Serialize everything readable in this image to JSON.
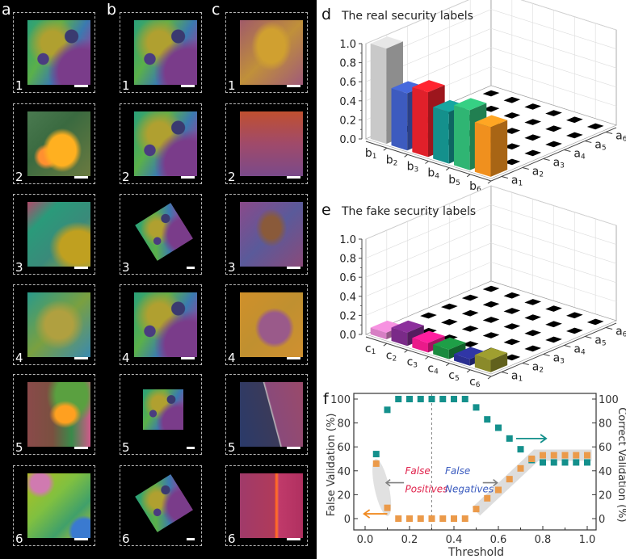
{
  "panels": {
    "left": {
      "columns": [
        {
          "letter": "a",
          "tiles": [
            {
              "num": "1",
              "style": "rainbow1"
            },
            {
              "num": "2",
              "style": "yellowburst"
            },
            {
              "num": "3",
              "style": "greenred"
            },
            {
              "num": "4",
              "style": "yellowgreen"
            },
            {
              "num": "5",
              "style": "greenorange"
            },
            {
              "num": "6",
              "style": "limeblue"
            }
          ]
        },
        {
          "letter": "b",
          "tiles": [
            {
              "num": "1",
              "style": "rainbow1"
            },
            {
              "num": "2",
              "style": "rainbow1"
            },
            {
              "num": "3",
              "style": "rainbow1",
              "transform": "rotated"
            },
            {
              "num": "4",
              "style": "rainbow1"
            },
            {
              "num": "5",
              "style": "rainbow1",
              "transform": "scaled"
            },
            {
              "num": "6",
              "style": "rainbow1",
              "transform": "rotated"
            }
          ]
        },
        {
          "letter": "c",
          "tiles": [
            {
              "num": "1",
              "style": "goldpurple"
            },
            {
              "num": "2",
              "style": "orangepurple"
            },
            {
              "num": "3",
              "style": "purplemix"
            },
            {
              "num": "4",
              "style": "goldpurple2"
            },
            {
              "num": "5",
              "style": "darkscratch"
            },
            {
              "num": "6",
              "style": "redscratch"
            }
          ]
        }
      ]
    }
  },
  "chart_data": [
    {
      "panel_letter": "d",
      "type": "bar",
      "subtype": "3d-bar",
      "title": "The real security labels",
      "zlim": [
        0,
        1.0
      ],
      "zticks": [
        "0.0",
        "0.2",
        "0.4",
        "0.6",
        "0.8",
        "1.0"
      ],
      "row_labels": [
        "b1",
        "b2",
        "b3",
        "b4",
        "b5",
        "b6"
      ],
      "row_label_base": [
        "b",
        "b",
        "b",
        "b",
        "b",
        "b"
      ],
      "row_label_sub": [
        "1",
        "2",
        "3",
        "4",
        "5",
        "6"
      ],
      "col_labels": [
        "a1",
        "a2",
        "a3",
        "a4",
        "a5",
        "a6"
      ],
      "col_label_base": [
        "a",
        "a",
        "a",
        "a",
        "a",
        "a"
      ],
      "col_label_sub": [
        "1",
        "2",
        "3",
        "4",
        "5",
        "6"
      ],
      "diagonal_values": [
        1.0,
        0.6,
        0.68,
        0.54,
        0.63,
        0.52
      ],
      "diagonal_note": "bars only at (bi, a1) front row; all other cells ~0 shown as black floor markers",
      "bar_colors": [
        "#c9c9c9",
        "#3d5bbf",
        "#e0202a",
        "#14908c",
        "#2fb573",
        "#f0901e"
      ],
      "grid": true
    },
    {
      "panel_letter": "e",
      "type": "bar",
      "subtype": "3d-bar",
      "title": "The fake security labels",
      "zlim": [
        0,
        1.0
      ],
      "zticks": [
        "0.0",
        "0.2",
        "0.4",
        "0.6",
        "0.8",
        "1.0"
      ],
      "row_labels": [
        "c1",
        "c2",
        "c3",
        "c4",
        "c5",
        "c6"
      ],
      "row_label_base": [
        "c",
        "c",
        "c",
        "c",
        "c",
        "c"
      ],
      "row_label_sub": [
        "1",
        "2",
        "3",
        "4",
        "5",
        "6"
      ],
      "col_labels": [
        "a1",
        "a2",
        "a3",
        "a4",
        "a5",
        "a6"
      ],
      "col_label_base": [
        "a",
        "a",
        "a",
        "a",
        "a",
        "a"
      ],
      "col_label_sub": [
        "1",
        "2",
        "3",
        "4",
        "5",
        "6"
      ],
      "diagonal_values": [
        0.07,
        0.14,
        0.1,
        0.1,
        0.07,
        0.13
      ],
      "bar_colors": [
        "#d77fc4",
        "#7a2a88",
        "#ea1a8a",
        "#1a8a3e",
        "#2a2f90",
        "#8a8a2a"
      ],
      "grid": true
    },
    {
      "panel_letter": "f",
      "type": "scatter",
      "title": "",
      "xlabel": "Threshold",
      "ylabel": "False Validation (%)",
      "ylabel_right": "Correct Validation (%)",
      "xlim": [
        -0.05,
        1.05
      ],
      "ylim": [
        -10,
        105
      ],
      "xticks": [
        "0.0",
        "0.2",
        "0.4",
        "0.6",
        "0.8",
        "1.0"
      ],
      "xtick_values": [
        0.0,
        0.2,
        0.4,
        0.6,
        0.8,
        1.0
      ],
      "yticks": [
        "0",
        "20",
        "40",
        "60",
        "80",
        "100"
      ],
      "ytick_values": [
        0,
        20,
        40,
        60,
        80,
        100
      ],
      "x": [
        0.05,
        0.1,
        0.15,
        0.2,
        0.25,
        0.3,
        0.35,
        0.4,
        0.45,
        0.5,
        0.55,
        0.6,
        0.65,
        0.7,
        0.75,
        0.8,
        0.85,
        0.9,
        0.95,
        1.0
      ],
      "series": [
        {
          "name": "Correct Validation",
          "axis": "right",
          "color": "#14908c",
          "values": [
            54,
            91,
            100,
            100,
            100,
            100,
            100,
            100,
            100,
            93,
            83,
            76,
            67,
            58,
            49,
            47,
            47,
            47,
            47,
            47
          ]
        },
        {
          "name": "False Validation",
          "axis": "left",
          "color": "#eb9a4a",
          "values": [
            46,
            9,
            0,
            0,
            0,
            0,
            0,
            0,
            0,
            8,
            17,
            24,
            33,
            42,
            50,
            53,
            53,
            53,
            53,
            53
          ]
        }
      ],
      "threshold_line": 0.3,
      "annotations": [
        {
          "text_line1": "False",
          "text_line2": "Positives",
          "color": "#e0204a"
        },
        {
          "text_line1": "False",
          "text_line2": "Negatives",
          "color": "#3a5bbf"
        }
      ],
      "arrow_colors": {
        "left_axis": "#f08a20",
        "right_axis": "#14908c",
        "annotation": "#808080"
      }
    }
  ]
}
